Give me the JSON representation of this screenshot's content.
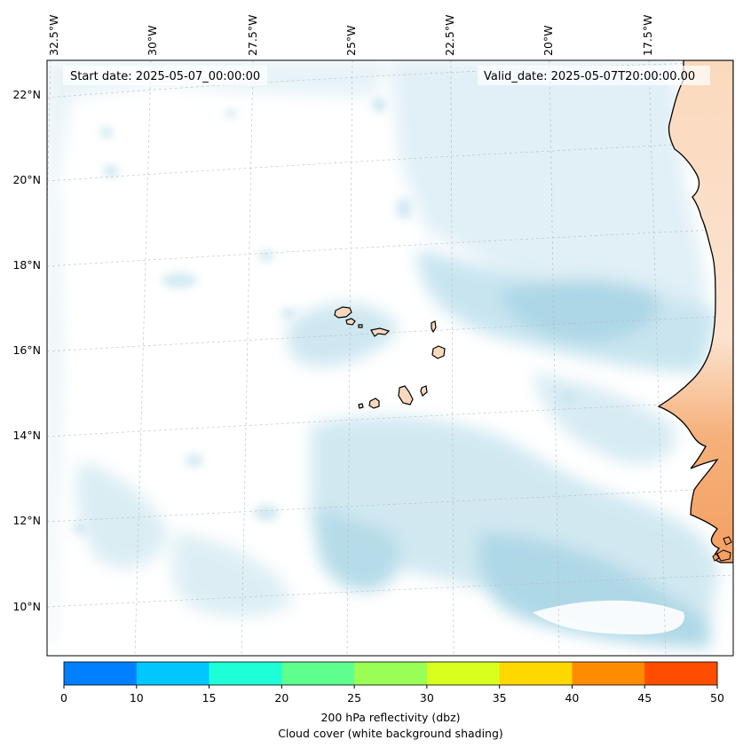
{
  "map": {
    "top_longitude_labels": [
      "32.5°W",
      "30°W",
      "27.5°W",
      "25°W",
      "22.5°W",
      "20°W",
      "17.5°W"
    ],
    "left_latitude_labels": [
      "22°N",
      "20°N",
      "18°N",
      "16°N",
      "14°N",
      "12°N",
      "10°N"
    ],
    "start_date_text": "Start date: 2025-05-07_00:00:00",
    "valid_date_text": "Valid_date: 2025-05-07T20:00:00.00",
    "gridlines": true,
    "coastline_color": "#000000",
    "land_fill_color": "#f7c6a0",
    "cloud_shading_color": "#a9d6e5"
  },
  "colorbar": {
    "ticks": [
      "0",
      "10",
      "15",
      "20",
      "25",
      "30",
      "35",
      "40",
      "45",
      "50"
    ],
    "colors": [
      "#0080ff",
      "#00c8ff",
      "#1effd8",
      "#5eff8e",
      "#9aff55",
      "#d8ff1e",
      "#ffd800",
      "#ff8c00",
      "#ff4d00"
    ],
    "label_line1": "200 hPa reflectivity (dbz)",
    "label_line2": "Cloud cover (white background shading)"
  }
}
